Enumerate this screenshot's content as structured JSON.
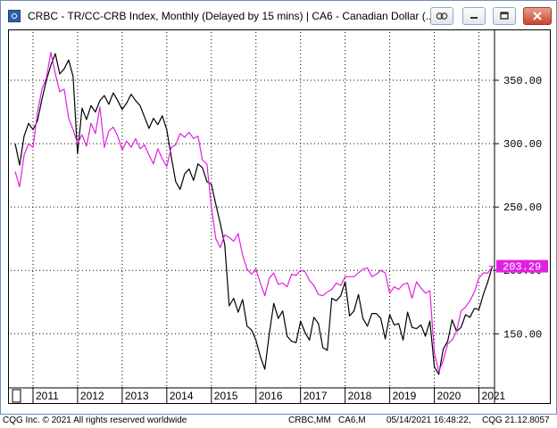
{
  "window": {
    "title": "CRBC - TR/CC-CRB Index, Monthly (Delayed by 15 mins)   |   CA6 - Canadian Dollar (...",
    "icons": [
      "app-icon",
      "link-icon",
      "minimize-icon",
      "restore-icon",
      "close-icon"
    ]
  },
  "colors": {
    "crb": "#000000",
    "cad": "#e020e0",
    "price_tag_bg": "#e020e0",
    "price_tag_text": "#ffffff",
    "grid": "#000000"
  },
  "status": {
    "left": "CQG Inc. © 2021 All rights reserved worldwide",
    "symbol1": "CRBC,MM",
    "symbol2": "CA6,M",
    "datetime": "05/14/2021 16:48:22,",
    "version": "CQG 21.12.8057"
  },
  "chart_data": {
    "type": "line",
    "x_labels": [
      "2011",
      "2012",
      "2013",
      "2014",
      "2015",
      "2016",
      "2017",
      "2018",
      "2019",
      "2020",
      "2021"
    ],
    "y_ticks": [
      "350.00",
      "300.00",
      "250.00",
      "200.00",
      "150.00"
    ],
    "y_tick_values": [
      350,
      300,
      250,
      200,
      150
    ],
    "ylim": [
      108,
      388
    ],
    "xlim": [
      2010.5,
      2021.35
    ],
    "grid": true,
    "last_price_label": "203.29",
    "last_price_value": 203.29,
    "series": [
      {
        "key": "crb",
        "x": [
          2010.6,
          2010.7,
          2010.8,
          2010.9,
          2011.0,
          2011.1,
          2011.2,
          2011.3,
          2011.4,
          2011.5,
          2011.6,
          2011.7,
          2011.8,
          2011.9,
          2012.0,
          2012.1,
          2012.2,
          2012.3,
          2012.4,
          2012.5,
          2012.6,
          2012.7,
          2012.8,
          2012.9,
          2013.0,
          2013.1,
          2013.2,
          2013.3,
          2013.4,
          2013.5,
          2013.6,
          2013.7,
          2013.8,
          2013.9,
          2014.0,
          2014.1,
          2014.2,
          2014.3,
          2014.4,
          2014.5,
          2014.6,
          2014.7,
          2014.8,
          2014.9,
          2015.0,
          2015.1,
          2015.2,
          2015.3,
          2015.4,
          2015.5,
          2015.6,
          2015.7,
          2015.8,
          2015.9,
          2016.0,
          2016.1,
          2016.2,
          2016.3,
          2016.4,
          2016.5,
          2016.6,
          2016.7,
          2016.8,
          2016.9,
          2017.0,
          2017.1,
          2017.2,
          2017.3,
          2017.4,
          2017.5,
          2017.6,
          2017.7,
          2017.8,
          2017.9,
          2018.0,
          2018.1,
          2018.2,
          2018.3,
          2018.4,
          2018.5,
          2018.6,
          2018.7,
          2018.8,
          2018.9,
          2019.0,
          2019.1,
          2019.2,
          2019.3,
          2019.4,
          2019.5,
          2019.6,
          2019.7,
          2019.8,
          2019.9,
          2020.0,
          2020.1,
          2020.2,
          2020.3,
          2020.4,
          2020.5,
          2020.6,
          2020.7,
          2020.8,
          2020.9,
          2021.0,
          2021.1,
          2021.2,
          2021.3
        ],
        "values": [
          300,
          283,
          306,
          316,
          311,
          318,
          335,
          350,
          362,
          371,
          355,
          359,
          366,
          353,
          292,
          328,
          319,
          330,
          325,
          334,
          338,
          331,
          340,
          334,
          327,
          332,
          339,
          334,
          330,
          321,
          312,
          320,
          315,
          322,
          311,
          290,
          270,
          264,
          276,
          280,
          271,
          284,
          281,
          270,
          268,
          252,
          237,
          220,
          172,
          178,
          167,
          177,
          156,
          153,
          145,
          132,
          122,
          150,
          174,
          162,
          168,
          148,
          144,
          143,
          160,
          151,
          145,
          163,
          158,
          139,
          137,
          178,
          176,
          180,
          191,
          164,
          168,
          181,
          162,
          156,
          166,
          166,
          162,
          146,
          165,
          157,
          158,
          145,
          167,
          155,
          154,
          157,
          148,
          160,
          124,
          118,
          138,
          144,
          161,
          152,
          155,
          165,
          163,
          170,
          169,
          181,
          191,
          203
        ]
      },
      {
        "key": "cad",
        "x": [
          2010.6,
          2010.7,
          2010.8,
          2010.9,
          2011.0,
          2011.1,
          2011.2,
          2011.3,
          2011.4,
          2011.5,
          2011.6,
          2011.7,
          2011.8,
          2011.9,
          2012.0,
          2012.1,
          2012.2,
          2012.3,
          2012.4,
          2012.5,
          2012.6,
          2012.7,
          2012.8,
          2012.9,
          2013.0,
          2013.1,
          2013.2,
          2013.3,
          2013.4,
          2013.5,
          2013.6,
          2013.7,
          2013.8,
          2013.9,
          2014.0,
          2014.1,
          2014.2,
          2014.3,
          2014.4,
          2014.5,
          2014.6,
          2014.7,
          2014.8,
          2014.9,
          2015.0,
          2015.1,
          2015.2,
          2015.3,
          2015.4,
          2015.5,
          2015.6,
          2015.7,
          2015.8,
          2015.9,
          2016.0,
          2016.1,
          2016.2,
          2016.3,
          2016.4,
          2016.5,
          2016.6,
          2016.7,
          2016.8,
          2016.9,
          2017.0,
          2017.1,
          2017.2,
          2017.3,
          2017.4,
          2017.5,
          2017.6,
          2017.7,
          2017.8,
          2017.9,
          2018.0,
          2018.1,
          2018.2,
          2018.3,
          2018.4,
          2018.5,
          2018.6,
          2018.7,
          2018.8,
          2018.9,
          2019.0,
          2019.1,
          2019.2,
          2019.3,
          2019.4,
          2019.5,
          2019.6,
          2019.7,
          2019.8,
          2019.9,
          2020.0,
          2020.1,
          2020.2,
          2020.3,
          2020.4,
          2020.5,
          2020.6,
          2020.7,
          2020.8,
          2020.9,
          2021.0,
          2021.1,
          2021.2,
          2021.3
        ],
        "values": [
          278,
          266,
          291,
          300,
          297,
          325,
          343,
          352,
          372,
          355,
          341,
          343,
          320,
          311,
          300,
          307,
          298,
          316,
          308,
          329,
          297,
          310,
          313,
          306,
          295,
          302,
          297,
          304,
          296,
          299,
          291,
          284,
          296,
          288,
          282,
          297,
          299,
          308,
          305,
          309,
          304,
          306,
          287,
          284,
          250,
          225,
          218,
          228,
          226,
          223,
          229,
          212,
          201,
          197,
          201,
          190,
          180,
          194,
          198,
          189,
          190,
          187,
          197,
          196,
          200,
          199,
          192,
          188,
          181,
          180,
          183,
          185,
          190,
          188,
          195,
          195,
          195,
          198,
          201,
          202,
          195,
          197,
          200,
          198,
          182,
          187,
          185,
          189,
          190,
          178,
          191,
          186,
          182,
          184,
          135,
          120,
          129,
          142,
          145,
          152,
          168,
          171,
          176,
          183,
          194,
          198,
          198,
          203
        ]
      }
    ]
  }
}
